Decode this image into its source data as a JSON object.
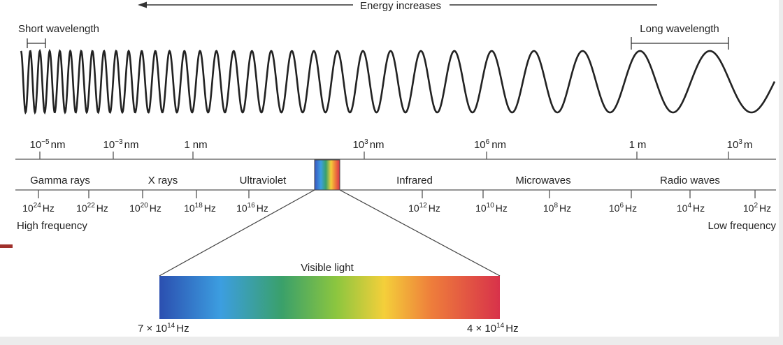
{
  "energy_label": "Energy increases",
  "short_wavelength_label": "Short wavelength",
  "long_wavelength_label": "Long wavelength",
  "wavelength_scale": [
    {
      "base": "10",
      "exp": "−5",
      "unit": "nm"
    },
    {
      "base": "10",
      "exp": "−3",
      "unit": "nm"
    },
    {
      "base": "1",
      "exp": "",
      "unit": "nm"
    },
    {
      "base": "10",
      "exp": "3",
      "unit": "nm"
    },
    {
      "base": "10",
      "exp": "6",
      "unit": "nm"
    },
    {
      "base": "1",
      "exp": "",
      "unit": "m"
    },
    {
      "base": "10",
      "exp": "3",
      "unit": "m"
    }
  ],
  "bands": [
    "Gamma rays",
    "X rays",
    "Ultraviolet",
    "Infrared",
    "Microwaves",
    "Radio waves"
  ],
  "frequency_scale": [
    {
      "base": "10",
      "exp": "24",
      "unit": "Hz"
    },
    {
      "base": "10",
      "exp": "22",
      "unit": "Hz"
    },
    {
      "base": "10",
      "exp": "20",
      "unit": "Hz"
    },
    {
      "base": "10",
      "exp": "18",
      "unit": "Hz"
    },
    {
      "base": "10",
      "exp": "16",
      "unit": "Hz"
    },
    {
      "base": "10",
      "exp": "12",
      "unit": "Hz"
    },
    {
      "base": "10",
      "exp": "10",
      "unit": "Hz"
    },
    {
      "base": "10",
      "exp": "8",
      "unit": "Hz"
    },
    {
      "base": "10",
      "exp": "6",
      "unit": "Hz"
    },
    {
      "base": "10",
      "exp": "4",
      "unit": "Hz"
    },
    {
      "base": "10",
      "exp": "2",
      "unit": "Hz"
    }
  ],
  "high_frequency_label": "High frequency",
  "low_frequency_label": "Low frequency",
  "visible_light_label": "Visible light",
  "visible_min_freq": "7 × 10",
  "visible_min_exp": "14",
  "visible_max_freq": "4 × 10",
  "visible_max_exp": "14",
  "visible_unit": "Hz",
  "colors": {
    "line": "#333333",
    "accent_bar": "#a0312c",
    "spectrum": [
      "#2b4fb0",
      "#3c9ee0",
      "#3aa06a",
      "#8cc63f",
      "#f4cf3a",
      "#ee7d3b",
      "#d8324a"
    ]
  }
}
